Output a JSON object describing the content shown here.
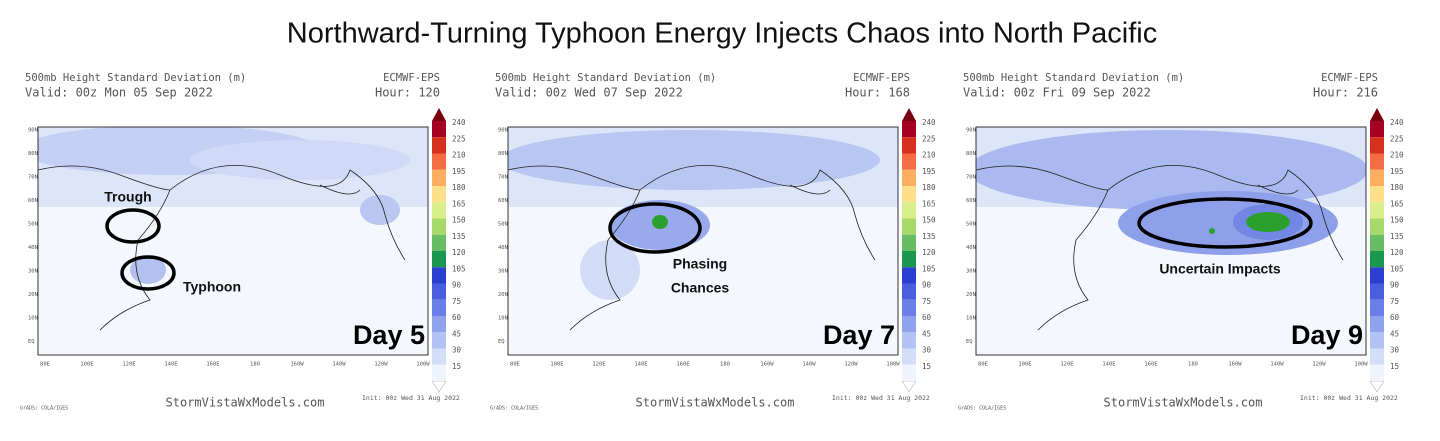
{
  "title": "Northward-Turning Typhoon Energy Injects Chaos into North Pacific",
  "colorbar": [
    "240",
    "225",
    "210",
    "195",
    "180",
    "165",
    "150",
    "135",
    "120",
    "105",
    "90",
    "75",
    "60",
    "45",
    "30",
    "15"
  ],
  "lat_labels": [
    "90N",
    "80N",
    "70N",
    "60N",
    "50N",
    "40N",
    "30N",
    "20N",
    "10N",
    "EQ"
  ],
  "lon_labels": [
    "80E",
    "100E",
    "120E",
    "140E",
    "160E",
    "180",
    "160W",
    "140W",
    "120W",
    "100W"
  ],
  "panels": [
    {
      "header": "500mb Height Standard Deviation (m)",
      "valid": "Valid: 00z Mon 05 Sep 2022",
      "model": "ECMWF-EPS",
      "hour": "Hour: 120",
      "day": "Day 5",
      "annotations": [
        {
          "lines": [
            "Trough"
          ]
        },
        {
          "lines": [
            "Typhoon"
          ]
        }
      ],
      "credit": "StormVistaWxModels.com",
      "init": "Init: 00z Wed 31 Aug 2022",
      "grads": "GrADS: COLA/IGES"
    },
    {
      "header": "500mb Height Standard Deviation (m)",
      "valid": "Valid: 00z Wed 07 Sep 2022",
      "model": "ECMWF-EPS",
      "hour": "Hour: 168",
      "day": "Day 7",
      "annotations": [
        {
          "lines": [
            "Phasing",
            "Chances"
          ]
        }
      ],
      "credit": "StormVistaWxModels.com",
      "init": "Init: 00z Wed 31 Aug 2022",
      "grads": "GrADS: COLA/IGES"
    },
    {
      "header": "500mb Height Standard Deviation (m)",
      "valid": "Valid: 00z Fri 09 Sep 2022",
      "model": "ECMWF-EPS",
      "hour": "Hour: 216",
      "day": "Day 9",
      "annotations": [
        {
          "lines": [
            "Uncertain Impacts"
          ]
        }
      ],
      "credit": "StormVistaWxModels.com",
      "init": "Init: 00z Wed 31 Aug 2022",
      "grads": "GrADS: COLA/IGES"
    }
  ]
}
